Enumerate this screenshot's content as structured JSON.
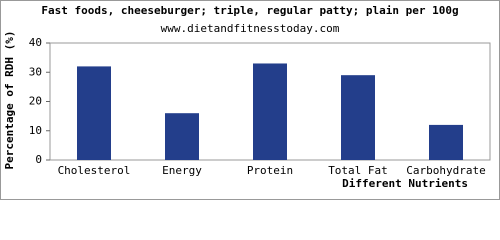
{
  "chart_data": {
    "type": "bar",
    "title": "Fast foods, cheeseburger; triple, regular patty; plain per 100g",
    "subtitle": "www.dietandfitnesstoday.com",
    "y_label": "Percentage of RDH (%)",
    "x_label": "Different Nutrients",
    "categories": [
      "Cholesterol",
      "Energy",
      "Protein",
      "Total Fat",
      "Carbohydrate"
    ],
    "values": [
      32,
      16,
      33,
      29,
      12
    ],
    "color": "#233e8b",
    "ylim": [
      0,
      40
    ],
    "yticks": [
      0,
      10,
      20,
      30,
      40
    ],
    "grid": false
  }
}
